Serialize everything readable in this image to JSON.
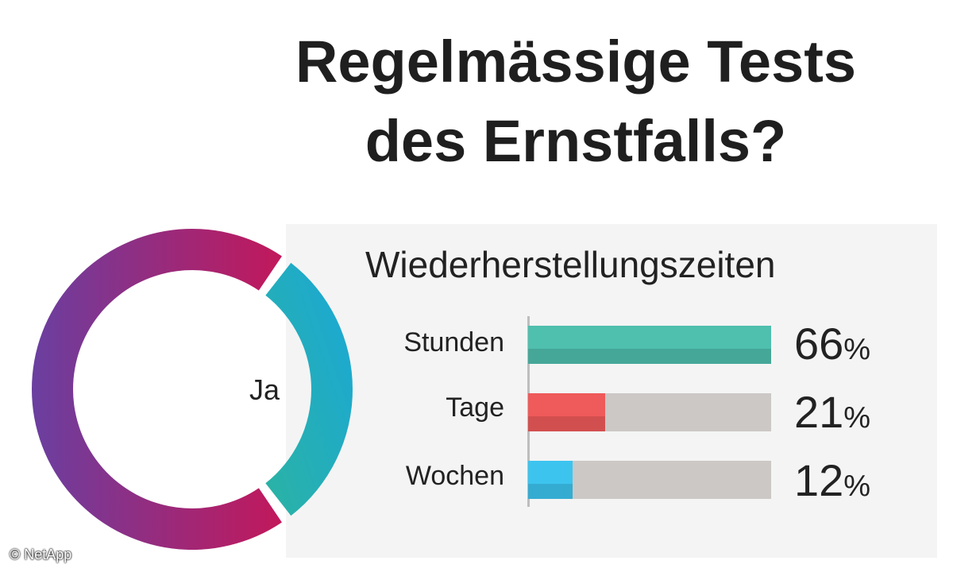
{
  "title_line1": "Regelmässige Tests",
  "title_line2": "des Ernstfalls?",
  "credit": "© NetApp",
  "colors": {
    "donut_magenta": "#c2185b",
    "donut_purple": "#6a3fa0",
    "donut_teal": "#2bb3a3",
    "donut_cyan": "#1aa7d8"
  },
  "chart_data": [
    {
      "type": "pie",
      "variant": "donut",
      "center_label": "Ja",
      "slices": [
        {
          "label": "Ja",
          "value": 30,
          "color": "#26b0b8"
        },
        {
          "label": "",
          "value": 70,
          "color": "#8e2a7a"
        }
      ]
    },
    {
      "type": "bar",
      "orientation": "horizontal",
      "title": "Wiederherstellungszeiten",
      "categories": [
        "Stunden",
        "Tage",
        "Wochen"
      ],
      "values": [
        66,
        21,
        12
      ],
      "display": [
        "66",
        "21",
        "12"
      ],
      "unit": "%",
      "xlim": [
        0,
        66
      ],
      "colors": [
        "#4fbfae",
        "#ef5a5a",
        "#3cc4ef"
      ]
    }
  ]
}
